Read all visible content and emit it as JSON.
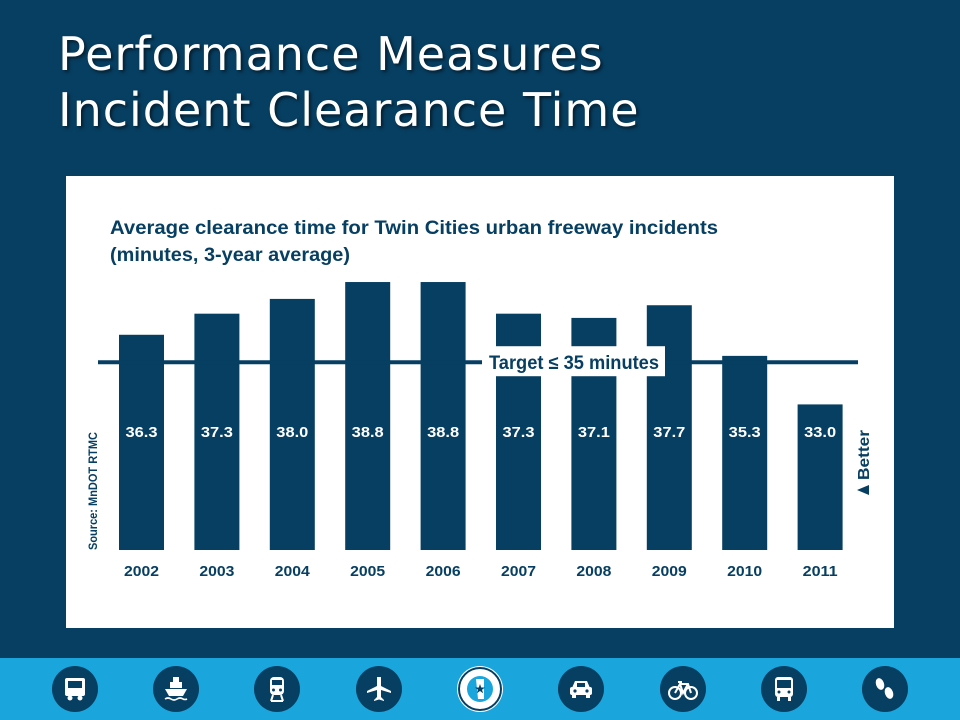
{
  "slide": {
    "title_line1": "Performance Measures",
    "title_line2": "Incident Clearance Time"
  },
  "chart_data": {
    "type": "bar",
    "title": "Average clearance time for Twin Cities urban freeway incidents",
    "subtitle": "(minutes, 3-year average)",
    "categories": [
      "2002",
      "2003",
      "2004",
      "2005",
      "2006",
      "2007",
      "2008",
      "2009",
      "2010",
      "2011"
    ],
    "values": [
      36.3,
      37.3,
      38.0,
      38.8,
      38.8,
      37.3,
      37.1,
      37.7,
      35.3,
      33.0
    ],
    "value_labels": [
      "36.3",
      "37.3",
      "38.0",
      "38.8",
      "38.8",
      "37.3",
      "37.1",
      "37.7",
      "35.3",
      "33.0"
    ],
    "target": {
      "value": 35,
      "label": "Target ≤ 35 minutes"
    },
    "source": "Source: MnDOT RTMC",
    "direction_label": "Better",
    "bar_color": "#073f62"
  },
  "footer": {
    "icons": [
      "truck-icon",
      "ship-icon",
      "train-icon",
      "airplane-icon",
      "mndot-seal-icon",
      "car-icon",
      "bicycle-icon",
      "bus-icon",
      "footprints-icon"
    ],
    "seal_text": "MINNESOTA DEPARTMENT OF TRANSPORTATION",
    "color": "#1aa6dc"
  }
}
